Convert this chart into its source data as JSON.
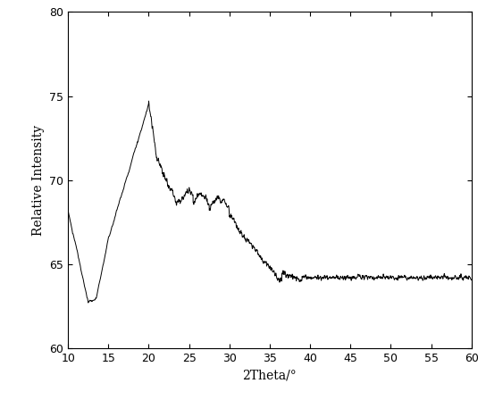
{
  "title": "",
  "xlabel": "2Theta/°",
  "ylabel": "Relative Intensity",
  "xlim": [
    10,
    60
  ],
  "ylim": [
    60,
    80
  ],
  "yticks": [
    60,
    65,
    70,
    75,
    80
  ],
  "xticks": [
    10,
    15,
    20,
    25,
    30,
    35,
    40,
    45,
    50,
    55,
    60
  ],
  "line_color": "#000000",
  "line_width": 0.7,
  "background_color": "#ffffff",
  "figsize": [
    5.44,
    4.48
  ],
  "dpi": 100,
  "border_color": "#888888"
}
